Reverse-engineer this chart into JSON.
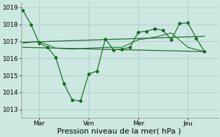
{
  "bg_color": "#cce8e0",
  "grid_color": "#aacccc",
  "line_color": "#1a6b2a",
  "ylim": [
    1012.5,
    1019.3
  ],
  "yticks": [
    1013,
    1014,
    1015,
    1016,
    1017,
    1018,
    1019
  ],
  "xlabel": "Pression niveau de la mer( hPa )",
  "day_labels": [
    "Mar",
    "Ven",
    "Mer",
    "Jeu"
  ],
  "day_positions": [
    1,
    4,
    7,
    10
  ],
  "vline_positions": [
    1,
    4,
    7,
    10
  ],
  "xlim": [
    -0.1,
    11.8
  ],
  "series1_x": [
    0,
    0.5,
    1,
    1.5,
    2,
    2.5,
    3,
    3.5,
    4,
    4.5,
    5,
    5.5,
    6,
    6.5,
    7,
    7.5,
    8,
    8.0,
    8.5,
    9,
    9.5,
    10,
    10.5,
    11
  ],
  "series1_y": [
    1018.85,
    1018.0,
    1016.9,
    1016.65,
    1016.05,
    1014.5,
    1013.55,
    1013.5,
    1015.1,
    1015.25,
    1017.15,
    1016.5,
    1016.55,
    1016.65,
    1017.55,
    1017.6,
    1017.75,
    1017.75,
    1017.65,
    1017.1,
    1018.05,
    1018.1,
    1017.2,
    1016.4
  ],
  "series2_x": [
    0,
    1,
    2,
    3,
    4,
    5,
    6,
    7,
    8,
    9,
    10,
    11
  ],
  "series2_y": [
    1016.9,
    1017.0,
    1016.6,
    1016.55,
    1016.6,
    1016.65,
    1016.65,
    1017.1,
    1017.25,
    1017.5,
    1016.65,
    1016.4
  ],
  "series3_x": [
    0,
    11
  ],
  "series3_y": [
    1016.95,
    1017.3
  ],
  "series4_x": [
    0,
    11
  ],
  "series4_y": [
    1016.65,
    1016.4
  ],
  "tick_fontsize": 6.5,
  "xlabel_fontsize": 8
}
